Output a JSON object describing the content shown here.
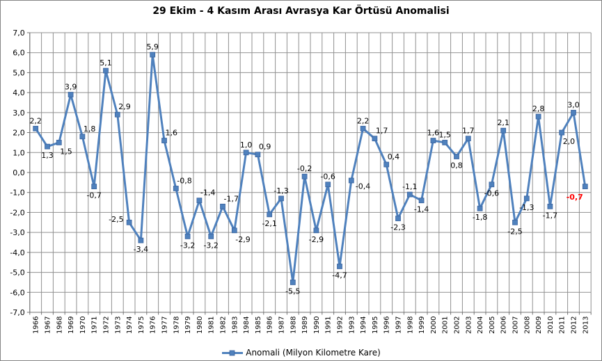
{
  "chart_data": {
    "type": "line",
    "title": "29 Ekim - 4 Kasım Arası Avrasya Kar Örtüsü Anomalisi",
    "xlabel": "",
    "ylabel": "",
    "ylim": [
      -7,
      7
    ],
    "ytick_step": 1,
    "ytick_labels": [
      "7,0",
      "6,0",
      "5,0",
      "4,0",
      "3,0",
      "2,0",
      "1,0",
      "0,0",
      "-1,0",
      "-2,0",
      "-3,0",
      "-4,0",
      "-5,0",
      "-6,0",
      "-7,0"
    ],
    "grid": true,
    "legend_position": "bottom",
    "categories": [
      "1966",
      "1967",
      "1968",
      "1969",
      "1970",
      "1971",
      "1972",
      "1973",
      "1974",
      "1975",
      "1976",
      "1977",
      "1978",
      "1979",
      "1980",
      "1981",
      "1982",
      "1983",
      "1984",
      "1985",
      "1986",
      "1987",
      "1988",
      "1989",
      "1990",
      "1991",
      "1992",
      "1993",
      "1994",
      "1995",
      "1996",
      "1997",
      "1998",
      "1999",
      "2000",
      "2001",
      "2002",
      "2003",
      "2004",
      "2005",
      "2006",
      "2007",
      "2008",
      "2009",
      "2010",
      "2011",
      "2012",
      "2013"
    ],
    "series": [
      {
        "name": "Anomali (Milyon Kilometre Kare)",
        "color": "#4F81BD",
        "marker": "square",
        "values": [
          2.2,
          1.3,
          1.5,
          3.9,
          1.8,
          -0.7,
          5.1,
          2.9,
          -2.5,
          -3.4,
          5.9,
          1.6,
          -0.8,
          -3.2,
          -1.4,
          -3.2,
          -1.7,
          -2.9,
          1.0,
          0.9,
          -2.1,
          -1.3,
          -5.5,
          -0.2,
          -2.9,
          -0.6,
          -4.7,
          -0.4,
          2.2,
          1.7,
          0.4,
          -2.3,
          -1.1,
          -1.4,
          1.6,
          1.5,
          0.8,
          1.7,
          -1.8,
          -0.6,
          2.1,
          -2.5,
          -1.3,
          2.8,
          -1.7,
          2.0,
          3.0,
          -0.7
        ],
        "point_labels": [
          "2,2",
          "1,3",
          "1,5",
          "3,9",
          "1,8",
          "-0,7",
          "5,1",
          "2,9",
          "-2,5",
          "-3,4",
          "5,9",
          "1,6",
          "-0,8",
          "-3,2",
          "-1,4",
          "-3,2",
          "-1,7",
          "-2,9",
          "1,0",
          "0,9",
          "-2,1",
          "-1,3",
          "-5,5",
          "-0,2",
          "-2,9",
          "-0,6",
          "-4,7",
          "-0,4",
          "2,2",
          "1,7",
          "0,4",
          "-2,3",
          "-1,1",
          "-1,4",
          "1,6",
          "1,5",
          "0,8",
          "1,7",
          "-1,8",
          "-0,6",
          "2,1",
          "-2,5",
          "-1,3",
          "2,8",
          "-1,7",
          "2,0",
          "3,0",
          "-0,7"
        ],
        "label_positions": [
          "above",
          "below",
          "below-right",
          "above",
          "above-right",
          "below",
          "above",
          "above-right",
          "left",
          "below",
          "above",
          "above-right",
          "above-right",
          "below",
          "above-right",
          "below",
          "above-right",
          "below-right",
          "above",
          "above-right",
          "below",
          "above",
          "below",
          "above",
          "below",
          "above",
          "below",
          "right",
          "above",
          "above-right",
          "above-right",
          "below",
          "above",
          "below",
          "above",
          "above",
          "below",
          "above",
          "below",
          "below",
          "above",
          "below",
          "below",
          "above",
          "below",
          "below-right",
          "above",
          "below-left"
        ],
        "highlight_last_label": {
          "index": 47,
          "color": "#FF0000",
          "bold": true
        }
      }
    ],
    "colors": {
      "line": "#4F81BD",
      "marker_edge": "#38619C",
      "gridline": "#8F8F8F",
      "axis": "#707070",
      "label_text": "#000000",
      "highlight_label": "#FF0000"
    }
  }
}
